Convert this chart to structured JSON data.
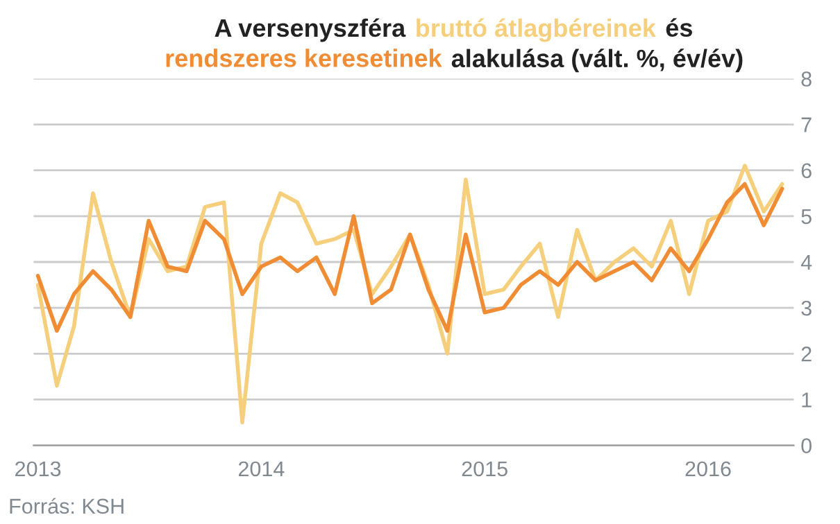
{
  "chart_data": {
    "type": "line",
    "title": "A versenyszféra",
    "x": [
      "2013-01",
      "2013-02",
      "2013-03",
      "2013-04",
      "2013-05",
      "2013-06",
      "2013-07",
      "2013-08",
      "2013-09",
      "2013-10",
      "2013-11",
      "2013-12",
      "2014-01",
      "2014-02",
      "2014-03",
      "2014-04",
      "2014-05",
      "2014-06",
      "2014-07",
      "2014-08",
      "2014-09",
      "2014-10",
      "2014-11",
      "2014-12",
      "2015-01",
      "2015-02",
      "2015-03",
      "2015-04",
      "2015-05",
      "2015-06",
      "2015-07",
      "2015-08",
      "2015-09",
      "2015-10",
      "2015-11",
      "2015-12",
      "2016-01",
      "2016-02",
      "2016-03",
      "2016-04",
      "2016-05"
    ],
    "series": [
      {
        "name": "bruttó átlagbéreinek",
        "color": "#f6cf7c",
        "values": [
          3.5,
          1.3,
          2.6,
          5.5,
          4.0,
          2.8,
          4.5,
          3.8,
          3.9,
          5.2,
          5.3,
          0.5,
          4.4,
          5.5,
          5.3,
          4.4,
          4.5,
          4.7,
          3.3,
          3.9,
          4.6,
          3.5,
          2.0,
          5.8,
          3.3,
          3.4,
          3.9,
          4.4,
          2.8,
          4.7,
          3.6,
          4.0,
          4.3,
          3.9,
          4.9,
          3.3,
          4.9,
          5.1,
          6.1,
          5.1,
          5.7
        ]
      },
      {
        "name": "rendszeres keresetinek",
        "color": "#f08c33",
        "values": [
          3.7,
          2.5,
          3.3,
          3.8,
          3.4,
          2.8,
          4.9,
          3.9,
          3.8,
          4.9,
          4.5,
          3.3,
          3.9,
          4.1,
          3.8,
          4.1,
          3.3,
          5.0,
          3.1,
          3.4,
          4.6,
          3.4,
          2.5,
          4.6,
          2.9,
          3.0,
          3.5,
          3.8,
          3.5,
          4.0,
          3.6,
          3.8,
          4.0,
          3.6,
          4.3,
          3.8,
          4.5,
          5.3,
          5.7,
          4.8,
          5.6
        ]
      }
    ],
    "xlim": [
      "2012-12-25",
      "2016-05-20"
    ],
    "xticks": [
      {
        "value": "2013-01-01",
        "label": "2013"
      },
      {
        "value": "2014-01-01",
        "label": "2014"
      },
      {
        "value": "2015-01-01",
        "label": "2015"
      },
      {
        "value": "2016-01-01",
        "label": "2016"
      }
    ],
    "ylim": [
      0,
      8
    ],
    "yticks": [
      0,
      1,
      2,
      3,
      4,
      5,
      6,
      7,
      8
    ],
    "grid": "y",
    "legend": false,
    "marker": "none",
    "line_style": "solid",
    "annotations": [
      "és",
      "alakulása (vált. %, év/év)",
      "Forrás: KSH"
    ]
  }
}
